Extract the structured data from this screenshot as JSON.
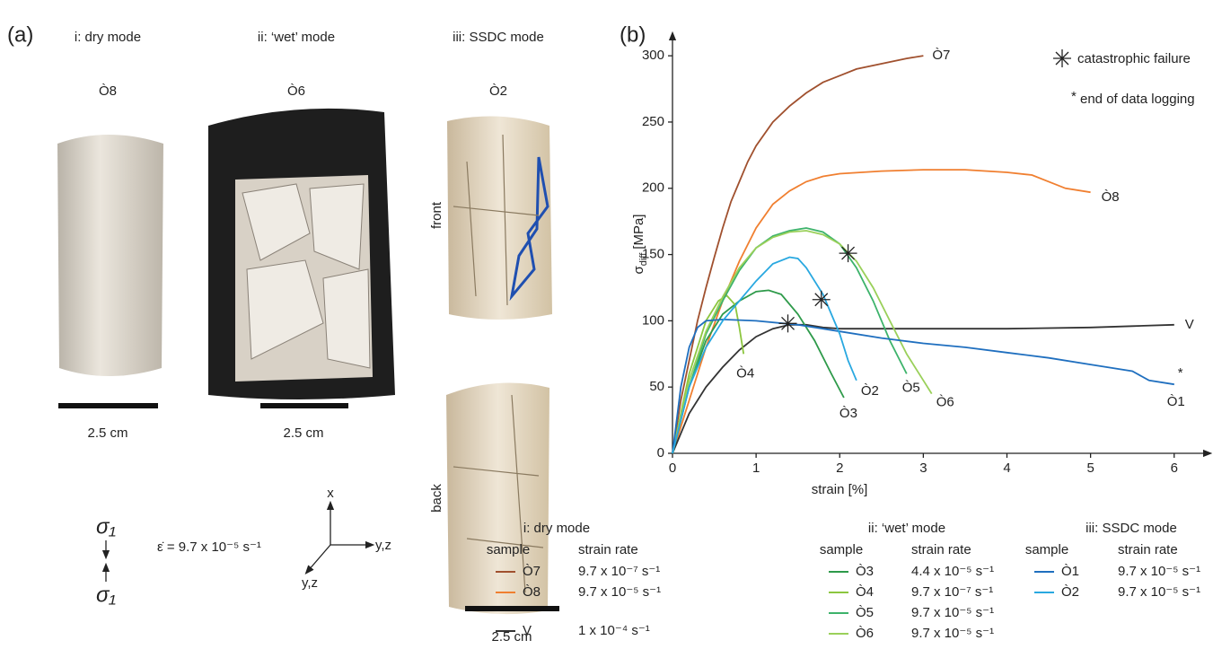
{
  "panel_a": {
    "label": "(a)",
    "columns": [
      {
        "title": "i: dry mode",
        "sample": "Ò8",
        "scale": "2.5 cm"
      },
      {
        "title": "ii: ‘wet’ mode",
        "sample": "Ò6",
        "scale": "2.5 cm"
      },
      {
        "title": "iii: SSDC mode",
        "sample": "Ò2",
        "scale": "2.5 cm"
      }
    ],
    "views": [
      "front",
      "back"
    ],
    "stress": "σ₁",
    "strain_rate": "ε̇ = 9.7 x 10⁻⁵ s⁻¹",
    "axes": {
      "up": "x",
      "right": "y,z",
      "diagonal": "y,z"
    }
  },
  "chart_data": {
    "type": "line",
    "label": "(b)",
    "ylabel": {
      "symbol": "σ",
      "subscript": "diff",
      "unit": "[MPa]"
    },
    "xlabel": "strain [%]",
    "xlim": [
      0,
      6.4
    ],
    "ylim": [
      0,
      315
    ],
    "xticks": [
      0,
      1,
      2,
      3,
      4,
      5,
      6
    ],
    "yticks": [
      0,
      50,
      100,
      150,
      200,
      250,
      300
    ],
    "failure": {
      "text": "catastrophic failure",
      "x": [
        1.38,
        1.78,
        2.1
      ],
      "y": [
        98,
        116,
        151
      ]
    },
    "logging_note": {
      "symbol": "*",
      "text": "end of data logging"
    },
    "legend_groups": [
      {
        "title": "i: dry mode",
        "headers": [
          "sample",
          "strain rate"
        ]
      },
      {
        "title": "ii: ‘wet’ mode",
        "headers": [
          "sample",
          "strain rate"
        ]
      },
      {
        "title": "iii: SSDC mode",
        "headers": [
          "sample",
          "strain rate"
        ]
      }
    ],
    "series": [
      {
        "name": "Ò7",
        "color": "#a0502e",
        "strain_rate": "9.7 x 10⁻⁷ s⁻¹",
        "x": [
          0,
          0.1,
          0.2,
          0.3,
          0.4,
          0.5,
          0.6,
          0.7,
          0.8,
          0.9,
          1.0,
          1.2,
          1.4,
          1.6,
          1.8,
          2.0,
          2.2,
          2.5,
          2.8,
          3.0
        ],
        "values": [
          0,
          40,
          70,
          100,
          125,
          148,
          170,
          190,
          205,
          220,
          232,
          250,
          262,
          272,
          280,
          285,
          290,
          294,
          298,
          300
        ]
      },
      {
        "name": "Ò8",
        "color": "#f07f30",
        "strain_rate": "9.7 x 10⁻⁵ s⁻¹",
        "x": [
          0,
          0.2,
          0.4,
          0.6,
          0.8,
          1.0,
          1.2,
          1.4,
          1.6,
          1.8,
          2.0,
          2.5,
          3.0,
          3.5,
          4.0,
          4.3,
          4.5,
          4.7,
          5.0
        ],
        "values": [
          0,
          40,
          80,
          115,
          145,
          170,
          188,
          198,
          205,
          209,
          211,
          213,
          214,
          214,
          212,
          210,
          205,
          200,
          197
        ]
      },
      {
        "name": "V",
        "color": "#333333",
        "strain_rate": "1 x 10⁻⁴ s⁻¹",
        "x": [
          0,
          0.2,
          0.4,
          0.6,
          0.8,
          1.0,
          1.2,
          1.4,
          1.6,
          1.8,
          2.0,
          3.0,
          4.0,
          5.0,
          5.5,
          6.0
        ],
        "values": [
          0,
          30,
          50,
          65,
          78,
          88,
          94,
          97,
          97,
          95,
          94,
          94,
          94,
          95,
          96,
          97
        ]
      },
      {
        "name": "Ò3",
        "color": "#2e9a4a",
        "strain_rate": "4.4 x 10⁻⁵ s⁻¹",
        "x": [
          0,
          0.2,
          0.4,
          0.6,
          0.8,
          1.0,
          1.15,
          1.3,
          1.5,
          1.7,
          1.9,
          2.05
        ],
        "values": [
          0,
          50,
          85,
          105,
          115,
          122,
          123,
          120,
          105,
          85,
          60,
          42
        ]
      },
      {
        "name": "Ò4",
        "color": "#8cc63f",
        "strain_rate": "9.7 x 10⁻⁷ s⁻¹",
        "x": [
          0,
          0.2,
          0.4,
          0.55,
          0.65,
          0.75,
          0.8,
          0.85
        ],
        "values": [
          0,
          60,
          100,
          115,
          119,
          112,
          95,
          75
        ]
      },
      {
        "name": "Ò5",
        "color": "#3db36b",
        "strain_rate": "9.7 x 10⁻⁵ s⁻¹",
        "x": [
          0,
          0.2,
          0.4,
          0.6,
          0.8,
          1.0,
          1.2,
          1.4,
          1.6,
          1.8,
          2.0,
          2.2,
          2.4,
          2.6,
          2.8
        ],
        "values": [
          0,
          50,
          90,
          115,
          138,
          155,
          164,
          168,
          170,
          167,
          158,
          140,
          115,
          85,
          60
        ]
      },
      {
        "name": "Ò6",
        "color": "#9ad05a",
        "strain_rate": "9.7 x 10⁻⁵ s⁻¹",
        "x": [
          0,
          0.2,
          0.4,
          0.6,
          0.8,
          1.0,
          1.2,
          1.4,
          1.6,
          1.8,
          2.0,
          2.2,
          2.4,
          2.6,
          2.8,
          3.0,
          3.1
        ],
        "values": [
          0,
          55,
          92,
          118,
          140,
          155,
          163,
          167,
          168,
          165,
          158,
          145,
          125,
          100,
          75,
          55,
          45
        ]
      },
      {
        "name": "Ò1",
        "color": "#1f6fbf",
        "strain_rate": "9.7 x 10⁻⁵ s⁻¹",
        "x": [
          0,
          0.1,
          0.2,
          0.3,
          0.4,
          0.6,
          1.0,
          1.5,
          2.0,
          2.5,
          3.0,
          3.5,
          4.0,
          4.5,
          5.0,
          5.5,
          5.7,
          6.0
        ],
        "values": [
          0,
          50,
          80,
          95,
          100,
          101,
          100,
          97,
          92,
          87,
          83,
          80,
          76,
          72,
          67,
          62,
          55,
          52
        ]
      },
      {
        "name": "Ò2",
        "color": "#29a8e0",
        "strain_rate": "9.7 x 10⁻⁵ s⁻¹",
        "x": [
          0,
          0.2,
          0.4,
          0.6,
          0.8,
          1.0,
          1.2,
          1.4,
          1.5,
          1.6,
          1.8,
          2.0,
          2.1,
          2.2
        ],
        "values": [
          0,
          50,
          80,
          100,
          115,
          130,
          143,
          148,
          147,
          140,
          120,
          90,
          70,
          55
        ]
      }
    ]
  }
}
